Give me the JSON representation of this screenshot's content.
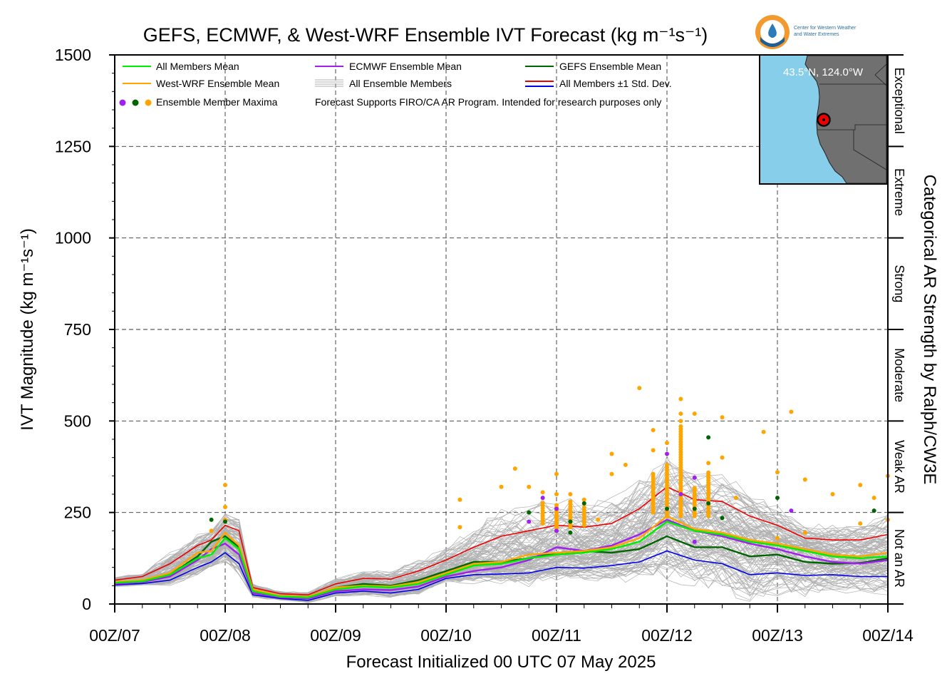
{
  "chart_data": {
    "type": "line",
    "title": "GEFS, ECMWF, & West-WRF Ensemble IVT Forecast (kg m⁻¹s⁻¹)",
    "xlabel": "Forecast Initialized 00 UTC 07 May 2025",
    "ylabel": "IVT Magnitude (kg m⁻¹s⁻¹)",
    "right_label": "Categorical AR Strength by Ralph/CW3E",
    "ylim": [
      0,
      1500
    ],
    "y_ticks": [
      "0",
      "250",
      "500",
      "750",
      "1000",
      "1250",
      "1500"
    ],
    "xlim_hours": [
      0,
      168
    ],
    "x_tick_labels": [
      "00Z/07",
      "00Z/08",
      "00Z/09",
      "00Z/10",
      "00Z/11",
      "00Z/12",
      "00Z/13",
      "00Z/14"
    ],
    "grid": true,
    "legend_position": "top-left",
    "legend": {
      "all_mean": "All Members Mean",
      "wrf_mean": "West-WRF Ensemble Mean",
      "maxima": "Ensemble Member Maxima",
      "ecmwf_mean": "ECMWF Ensemble Mean",
      "all_members": "All Ensemble Members",
      "note": "Forecast Supports FIRO/CA AR Program. Intended for research purposes only",
      "gefs_mean": "GEFS Ensemble Mean",
      "std": "All Members ±1 Std. Dev."
    },
    "categories_ar": [
      {
        "label": "Not an AR",
        "range": [
          0,
          250
        ]
      },
      {
        "label": "Weak AR",
        "range": [
          250,
          500
        ]
      },
      {
        "label": "Moderate",
        "range": [
          500,
          750
        ]
      },
      {
        "label": "Strong",
        "range": [
          750,
          1000
        ]
      },
      {
        "label": "Extreme",
        "range": [
          1000,
          1250
        ]
      },
      {
        "label": "Exceptional",
        "range": [
          1250,
          1500
        ]
      }
    ],
    "x": [
      0,
      6,
      12,
      18,
      21,
      24,
      27,
      30,
      36,
      42,
      48,
      54,
      60,
      66,
      72,
      78,
      84,
      90,
      96,
      102,
      108,
      114,
      120,
      126,
      132,
      138,
      144,
      150,
      156,
      162,
      168
    ],
    "series": [
      {
        "name": "All Members Mean",
        "color": "#00ee00",
        "values": [
          58,
          62,
          80,
          125,
          135,
          180,
          150,
          35,
          20,
          18,
          40,
          48,
          45,
          55,
          80,
          105,
          110,
          125,
          135,
          140,
          150,
          170,
          225,
          200,
          190,
          170,
          160,
          145,
          130,
          125,
          130
        ]
      },
      {
        "name": "West-WRF Ensemble Mean",
        "color": "#ffa500",
        "values": [
          60,
          65,
          85,
          140,
          145,
          195,
          160,
          40,
          22,
          20,
          45,
          50,
          48,
          60,
          85,
          110,
          115,
          135,
          140,
          145,
          155,
          180,
          240,
          205,
          195,
          175,
          165,
          150,
          135,
          130,
          140
        ]
      },
      {
        "name": "ECMWF Ensemble Mean",
        "color": "#a020f0",
        "values": [
          55,
          60,
          75,
          120,
          150,
          165,
          135,
          30,
          18,
          15,
          35,
          40,
          38,
          48,
          75,
          90,
          100,
          120,
          155,
          145,
          160,
          190,
          230,
          200,
          185,
          165,
          150,
          130,
          115,
          110,
          120
        ]
      },
      {
        "name": "GEFS Ensemble Mean",
        "color": "#006400",
        "values": [
          58,
          62,
          80,
          130,
          170,
          185,
          155,
          35,
          22,
          20,
          45,
          55,
          50,
          65,
          90,
          115,
          115,
          125,
          140,
          145,
          140,
          150,
          185,
          155,
          155,
          130,
          135,
          115,
          110,
          112,
          125
        ]
      },
      {
        "name": "All Members +1 Std. Dev.",
        "color": "#ee0000",
        "values": [
          65,
          75,
          110,
          160,
          175,
          215,
          200,
          45,
          28,
          25,
          55,
          70,
          68,
          90,
          120,
          155,
          185,
          200,
          215,
          210,
          220,
          260,
          320,
          285,
          280,
          240,
          215,
          180,
          175,
          175,
          190
        ]
      },
      {
        "name": "All Members -1 Std. Dev.",
        "color": "#0000ee",
        "values": [
          52,
          56,
          65,
          100,
          115,
          140,
          110,
          25,
          15,
          10,
          30,
          35,
          30,
          40,
          70,
          80,
          82,
          85,
          100,
          98,
          105,
          115,
          145,
          120,
          110,
          80,
          85,
          78,
          80,
          75,
          75
        ]
      }
    ],
    "maxima_points": [
      {
        "x": 24,
        "y": 325,
        "c": "orange"
      },
      {
        "x": 24,
        "y": 265,
        "c": "orange"
      },
      {
        "x": 24,
        "y": 230,
        "c": "orange"
      },
      {
        "x": 21,
        "y": 200,
        "c": "orange"
      },
      {
        "x": 21,
        "y": 230,
        "c": "green"
      },
      {
        "x": 24,
        "y": 225,
        "c": "green"
      },
      {
        "x": 75,
        "y": 210,
        "c": "orange"
      },
      {
        "x": 75,
        "y": 285,
        "c": "orange"
      },
      {
        "x": 84,
        "y": 320,
        "c": "orange"
      },
      {
        "x": 87,
        "y": 370,
        "c": "orange"
      },
      {
        "x": 90,
        "y": 320,
        "c": "orange"
      },
      {
        "x": 90,
        "y": 250,
        "c": "green"
      },
      {
        "x": 90,
        "y": 225,
        "c": "purple"
      },
      {
        "x": 93,
        "y": 305,
        "c": "orange"
      },
      {
        "x": 93,
        "y": 240,
        "c": "orange"
      },
      {
        "x": 93,
        "y": 290,
        "c": "purple"
      },
      {
        "x": 96,
        "y": 355,
        "c": "orange"
      },
      {
        "x": 96,
        "y": 300,
        "c": "orange"
      },
      {
        "x": 96,
        "y": 260,
        "c": "purple"
      },
      {
        "x": 96,
        "y": 200,
        "c": "purple"
      },
      {
        "x": 96,
        "y": 220,
        "c": "orange"
      },
      {
        "x": 99,
        "y": 300,
        "c": "orange"
      },
      {
        "x": 99,
        "y": 225,
        "c": "green"
      },
      {
        "x": 99,
        "y": 195,
        "c": "green"
      },
      {
        "x": 102,
        "y": 285,
        "c": "orange"
      },
      {
        "x": 102,
        "y": 275,
        "c": "green"
      },
      {
        "x": 105,
        "y": 230,
        "c": "orange"
      },
      {
        "x": 108,
        "y": 410,
        "c": "orange"
      },
      {
        "x": 108,
        "y": 355,
        "c": "orange"
      },
      {
        "x": 111,
        "y": 380,
        "c": "orange"
      },
      {
        "x": 114,
        "y": 590,
        "c": "orange"
      },
      {
        "x": 117,
        "y": 420,
        "c": "orange"
      },
      {
        "x": 117,
        "y": 475,
        "c": "orange"
      },
      {
        "x": 117,
        "y": 300,
        "c": "orange"
      },
      {
        "x": 120,
        "y": 410,
        "c": "purple"
      },
      {
        "x": 120,
        "y": 440,
        "c": "orange"
      },
      {
        "x": 120,
        "y": 260,
        "c": "green"
      },
      {
        "x": 123,
        "y": 560,
        "c": "orange"
      },
      {
        "x": 123,
        "y": 520,
        "c": "orange"
      },
      {
        "x": 123,
        "y": 500,
        "c": "orange"
      },
      {
        "x": 123,
        "y": 300,
        "c": "purple"
      },
      {
        "x": 126,
        "y": 520,
        "c": "orange"
      },
      {
        "x": 126,
        "y": 345,
        "c": "purple"
      },
      {
        "x": 126,
        "y": 260,
        "c": "green"
      },
      {
        "x": 126,
        "y": 170,
        "c": "purple"
      },
      {
        "x": 129,
        "y": 455,
        "c": "green"
      },
      {
        "x": 129,
        "y": 385,
        "c": "orange"
      },
      {
        "x": 129,
        "y": 275,
        "c": "green"
      },
      {
        "x": 132,
        "y": 510,
        "c": "orange"
      },
      {
        "x": 132,
        "y": 400,
        "c": "orange"
      },
      {
        "x": 132,
        "y": 235,
        "c": "green"
      },
      {
        "x": 135,
        "y": 290,
        "c": "orange"
      },
      {
        "x": 141,
        "y": 470,
        "c": "orange"
      },
      {
        "x": 144,
        "y": 360,
        "c": "orange"
      },
      {
        "x": 144,
        "y": 290,
        "c": "green"
      },
      {
        "x": 144,
        "y": 180,
        "c": "orange"
      },
      {
        "x": 147,
        "y": 525,
        "c": "orange"
      },
      {
        "x": 147,
        "y": 255,
        "c": "purple"
      },
      {
        "x": 150,
        "y": 340,
        "c": "orange"
      },
      {
        "x": 150,
        "y": 195,
        "c": "orange"
      },
      {
        "x": 156,
        "y": 300,
        "c": "orange"
      },
      {
        "x": 162,
        "y": 325,
        "c": "orange"
      },
      {
        "x": 162,
        "y": 220,
        "c": "orange"
      },
      {
        "x": 165,
        "y": 290,
        "c": "orange"
      },
      {
        "x": 165,
        "y": 255,
        "c": "green"
      },
      {
        "x": 168,
        "y": 350,
        "c": "orange"
      },
      {
        "x": 168,
        "y": 230,
        "c": "orange"
      }
    ],
    "dense_maxima_columns": [
      {
        "x": 117,
        "from": 250,
        "to": 360
      },
      {
        "x": 120,
        "from": 240,
        "to": 380
      },
      {
        "x": 123,
        "from": 240,
        "to": 490
      },
      {
        "x": 126,
        "from": 240,
        "to": 320
      },
      {
        "x": 129,
        "from": 240,
        "to": 360
      },
      {
        "x": 93,
        "from": 220,
        "to": 280
      },
      {
        "x": 96,
        "from": 200,
        "to": 270
      },
      {
        "x": 99,
        "from": 210,
        "to": 280
      },
      {
        "x": 102,
        "from": 215,
        "to": 270
      }
    ]
  },
  "inset_map": {
    "coord_label": "43.5°N, 124.0°W",
    "lat": 43.5,
    "lon": -124.0
  },
  "logo": {
    "line1": "Center for Western Weather",
    "line2": "and Water Extremes"
  },
  "colors": {
    "members": "#b0b0b0",
    "ocean": "#87ceeb",
    "land": "#707070",
    "orange": "#ffa500",
    "green": "#006400",
    "purple": "#a020f0"
  }
}
